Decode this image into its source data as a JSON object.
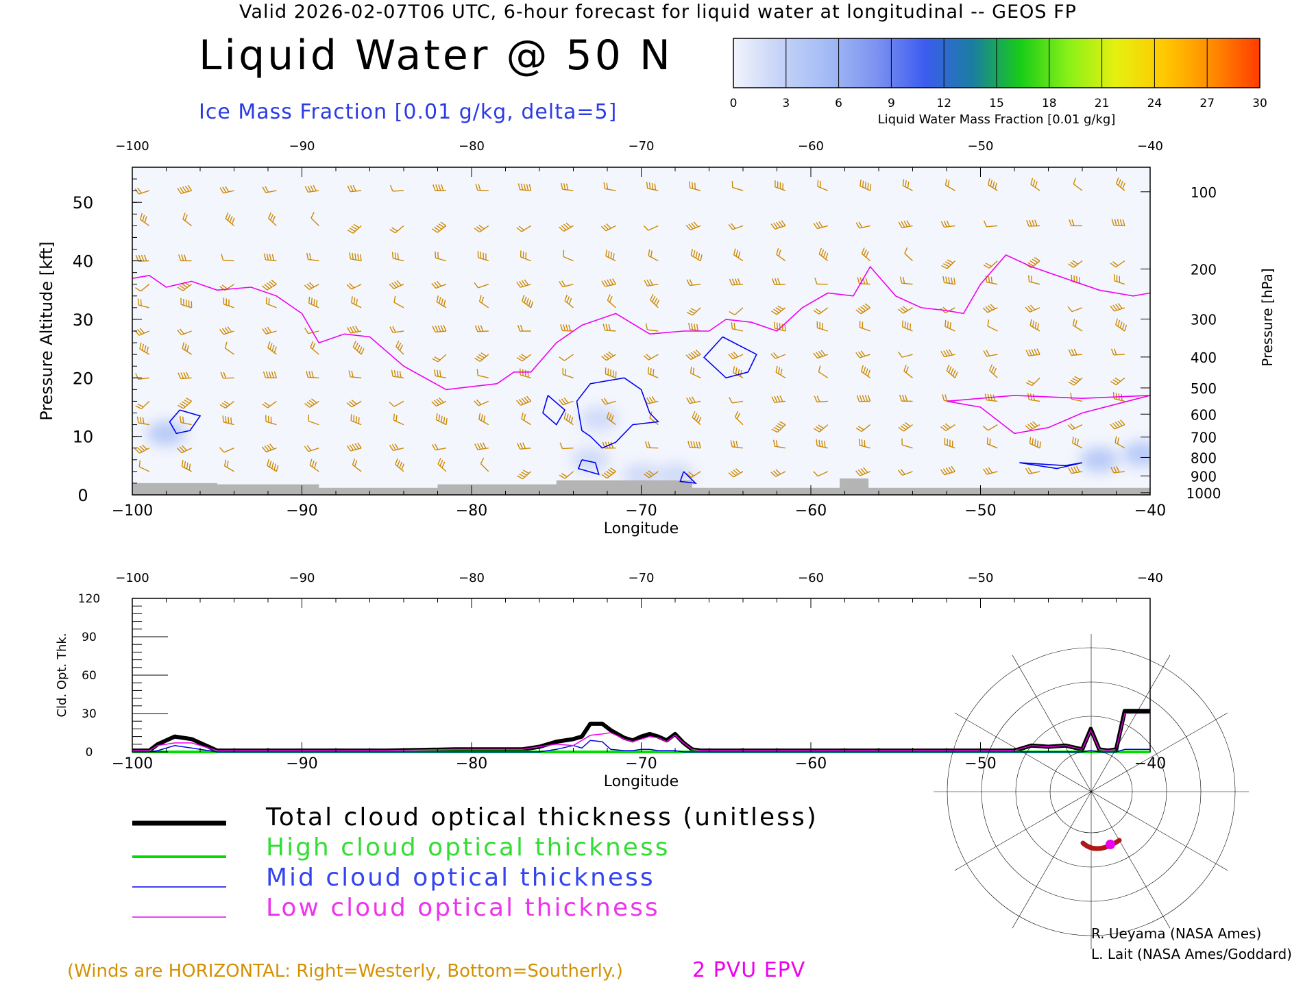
{
  "header": {
    "valid_line": "Valid 2026-02-07T06 UTC, 6-hour forecast for liquid water at longitudinal -- GEOS FP",
    "title": "Liquid Water @ 50 N",
    "subtitle": "Ice Mass Fraction [0.01 g/kg, delta=5]"
  },
  "colorbar": {
    "label": "Liquid Water Mass Fraction [0.01 g/kg]",
    "ticks": [
      "0",
      "3",
      "6",
      "9",
      "12",
      "15",
      "18",
      "21",
      "24",
      "27",
      "30"
    ],
    "colors": [
      "#f2f4fc",
      "#c4d2f7",
      "#a2baf5",
      "#7b92f0",
      "#3c5cf0",
      "#1a7ea0",
      "#18cc18",
      "#88f018",
      "#e6f010",
      "#ffc800",
      "#ff8c00",
      "#ff3c00"
    ]
  },
  "legend": {
    "total": "Total cloud optical thickness (unitless)",
    "high": "High cloud optical thickness",
    "mid": "Mid cloud optical thickness",
    "low": "Low cloud optical thickness",
    "colors": {
      "total": "#000000",
      "high": "#00dd00",
      "mid": "#0000ee",
      "low": "#ee00ee"
    }
  },
  "notes": {
    "winds": "(Winds are HORIZONTAL: Right=Westerly, Bottom=Southerly.)",
    "pvu": "2 PVU EPV"
  },
  "credits": {
    "line1": "R. Ueyama (NASA Ames)",
    "line2": "L. Lait (NASA Ames/Goddard)"
  },
  "chart_data": [
    {
      "type": "heatmap",
      "title": "Liquid Water @ 50 N",
      "xlabel": "Longitude",
      "ylabel": "Pressure Altitude [kft]",
      "ylabel_right": "Pressure [hPa]",
      "xlim": [
        -100,
        -40
      ],
      "ylim": [
        0,
        56
      ],
      "x_ticks": [
        "−100",
        "−90",
        "−80",
        "−70",
        "−60",
        "−50",
        "−40"
      ],
      "x_tick_values": [
        -100,
        -90,
        -80,
        -70,
        -60,
        -50,
        -40
      ],
      "y_ticks": [
        "0",
        "10",
        "20",
        "30",
        "40",
        "50"
      ],
      "y_tick_values": [
        0,
        10,
        20,
        30,
        40,
        50
      ],
      "pressure_ticks": [
        "100",
        "200",
        "300",
        "400",
        "500",
        "600",
        "700",
        "800",
        "900",
        "1000"
      ],
      "pressure_levels_hPa": [
        100,
        200,
        300,
        400,
        500,
        600,
        700,
        800,
        900,
        1000
      ],
      "wind_barb_color": "#cc8800",
      "ice_contour_color": "#0000ee",
      "terrain_color": "#b4b4b4",
      "liquid_water_patches": [
        {
          "lon": -98,
          "kft": 10.5,
          "value": 8
        },
        {
          "lon": -72.5,
          "kft": 13,
          "value": 3
        },
        {
          "lon": -73,
          "kft": 6,
          "value": 3
        },
        {
          "lon": -70,
          "kft": 3.3,
          "value": 4
        },
        {
          "lon": -68,
          "kft": 3.3,
          "value": 3
        },
        {
          "lon": -40.5,
          "kft": 7,
          "value": 8
        },
        {
          "lon": -43,
          "kft": 6,
          "value": 6
        }
      ],
      "tropopause_2pvu": [
        {
          "lon": -100,
          "kft": 37
        },
        {
          "lon": -99,
          "kft": 37.5
        },
        {
          "lon": -98,
          "kft": 35.5
        },
        {
          "lon": -96.5,
          "kft": 36.5
        },
        {
          "lon": -95,
          "kft": 35
        },
        {
          "lon": -93,
          "kft": 35.5
        },
        {
          "lon": -91.5,
          "kft": 34
        },
        {
          "lon": -90,
          "kft": 31
        },
        {
          "lon": -89,
          "kft": 26
        },
        {
          "lon": -87.5,
          "kft": 27.5
        },
        {
          "lon": -86,
          "kft": 27
        },
        {
          "lon": -84,
          "kft": 22
        },
        {
          "lon": -81.5,
          "kft": 18
        },
        {
          "lon": -80,
          "kft": 18.5
        },
        {
          "lon": -78.5,
          "kft": 19
        },
        {
          "lon": -77.5,
          "kft": 21
        },
        {
          "lon": -76.5,
          "kft": 21
        },
        {
          "lon": -75,
          "kft": 26
        },
        {
          "lon": -73.5,
          "kft": 29
        },
        {
          "lon": -71.5,
          "kft": 31
        },
        {
          "lon": -69.5,
          "kft": 27.5
        },
        {
          "lon": -67.5,
          "kft": 28
        },
        {
          "lon": -66,
          "kft": 28
        },
        {
          "lon": -65,
          "kft": 30
        },
        {
          "lon": -63.5,
          "kft": 29.5
        },
        {
          "lon": -62,
          "kft": 28
        },
        {
          "lon": -60.5,
          "kft": 32
        },
        {
          "lon": -59,
          "kft": 34.5
        },
        {
          "lon": -57.5,
          "kft": 34
        },
        {
          "lon": -56.5,
          "kft": 39
        },
        {
          "lon": -55,
          "kft": 34
        },
        {
          "lon": -53.5,
          "kft": 32
        },
        {
          "lon": -52,
          "kft": 31.5
        },
        {
          "lon": -51,
          "kft": 31
        },
        {
          "lon": -50,
          "kft": 36
        },
        {
          "lon": -48.5,
          "kft": 41
        },
        {
          "lon": -47,
          "kft": 39
        },
        {
          "lon": -45,
          "kft": 37
        },
        {
          "lon": -43,
          "kft": 35
        },
        {
          "lon": -41,
          "kft": 34
        },
        {
          "lon": -40,
          "kft": 34.5
        }
      ],
      "tropopause_low_branch": [
        {
          "lon": -52,
          "kft": 16
        },
        {
          "lon": -50,
          "kft": 15
        },
        {
          "lon": -48,
          "kft": 10.5
        },
        {
          "lon": -46,
          "kft": 11.5
        },
        {
          "lon": -44,
          "kft": 14
        },
        {
          "lon": -42,
          "kft": 15.5
        },
        {
          "lon": -40,
          "kft": 17
        }
      ],
      "tropopause_low_upper": [
        {
          "lon": -52,
          "kft": 16
        },
        {
          "lon": -48,
          "kft": 17
        },
        {
          "lon": -44,
          "kft": 16.5
        },
        {
          "lon": -40,
          "kft": 17
        }
      ],
      "ice_contours": [
        [
          {
            "lon": -97.2,
            "kft": 14.5
          },
          {
            "lon": -96,
            "kft": 13.5
          },
          {
            "lon": -96.6,
            "kft": 11
          },
          {
            "lon": -97.4,
            "kft": 10.5
          },
          {
            "lon": -97.8,
            "kft": 12.5
          },
          {
            "lon": -97.2,
            "kft": 14.5
          }
        ],
        [
          {
            "lon": -71,
            "kft": 20
          },
          {
            "lon": -70,
            "kft": 18
          },
          {
            "lon": -69.5,
            "kft": 14
          },
          {
            "lon": -69,
            "kft": 12.5
          },
          {
            "lon": -70.5,
            "kft": 12
          },
          {
            "lon": -71.5,
            "kft": 9
          },
          {
            "lon": -72.3,
            "kft": 8
          },
          {
            "lon": -73,
            "kft": 10
          },
          {
            "lon": -73.5,
            "kft": 11
          },
          {
            "lon": -73.8,
            "kft": 16
          },
          {
            "lon": -73,
            "kft": 19
          },
          {
            "lon": -71,
            "kft": 20
          }
        ],
        [
          {
            "lon": -75.5,
            "kft": 17
          },
          {
            "lon": -74.5,
            "kft": 14.5
          },
          {
            "lon": -75,
            "kft": 12
          },
          {
            "lon": -75.8,
            "kft": 14
          },
          {
            "lon": -75.5,
            "kft": 17
          }
        ],
        [
          {
            "lon": -65.2,
            "kft": 27
          },
          {
            "lon": -63.2,
            "kft": 24
          },
          {
            "lon": -63.7,
            "kft": 21
          },
          {
            "lon": -65,
            "kft": 20
          },
          {
            "lon": -66.3,
            "kft": 23.5
          },
          {
            "lon": -65.2,
            "kft": 27
          }
        ],
        [
          {
            "lon": -73.5,
            "kft": 6
          },
          {
            "lon": -73.7,
            "kft": 4.5
          },
          {
            "lon": -72.5,
            "kft": 3.5
          },
          {
            "lon": -72.7,
            "kft": 5.5
          },
          {
            "lon": -73.5,
            "kft": 6
          }
        ],
        [
          {
            "lon": -67.5,
            "kft": 4
          },
          {
            "lon": -66.8,
            "kft": 2
          },
          {
            "lon": -67.7,
            "kft": 2.3
          },
          {
            "lon": -67.5,
            "kft": 4
          }
        ],
        [
          {
            "lon": -47.7,
            "kft": 5.5
          },
          {
            "lon": -45,
            "kft": 5
          },
          {
            "lon": -44,
            "kft": 5.5
          },
          {
            "lon": -45.5,
            "kft": 4.5
          },
          {
            "lon": -47.7,
            "kft": 5.5
          }
        ]
      ],
      "terrain": [
        {
          "lon": -100,
          "kft": 2
        },
        {
          "lon": -95,
          "kft": 2
        },
        {
          "lon": -95,
          "kft": 1.8
        },
        {
          "lon": -89,
          "kft": 1.8
        },
        {
          "lon": -89,
          "kft": 1.2
        },
        {
          "lon": -82,
          "kft": 1.2
        },
        {
          "lon": -82,
          "kft": 1.8
        },
        {
          "lon": -75,
          "kft": 1.8
        },
        {
          "lon": -75,
          "kft": 2.5
        },
        {
          "lon": -67,
          "kft": 2.5
        },
        {
          "lon": -67,
          "kft": 1.2
        },
        {
          "lon": -58.3,
          "kft": 1.2
        },
        {
          "lon": -58.3,
          "kft": 2.8
        },
        {
          "lon": -56.6,
          "kft": 2.8
        },
        {
          "lon": -56.6,
          "kft": 1.2
        },
        {
          "lon": -40,
          "kft": 1.2
        }
      ]
    },
    {
      "type": "line",
      "xlabel": "Longitude",
      "ylabel": "Cld. Opt. Thk.",
      "xlim": [
        -100,
        -40
      ],
      "ylim": [
        0,
        120
      ],
      "x_ticks": [
        "−100",
        "−90",
        "−80",
        "−70",
        "−60",
        "−50",
        "−40"
      ],
      "x_tick_values": [
        -100,
        -90,
        -80,
        -70,
        -60,
        -50,
        -40
      ],
      "y_ticks": [
        "0",
        "30",
        "60",
        "90",
        "120"
      ],
      "y_tick_values": [
        0,
        30,
        60,
        90,
        120
      ],
      "x": [
        -100,
        -99,
        -98.5,
        -97.5,
        -96.5,
        -95.5,
        -95,
        -90,
        -85,
        -81,
        -79,
        -77,
        -76,
        -75,
        -74,
        -73.5,
        -73,
        -72.3,
        -71.8,
        -71,
        -70.5,
        -70,
        -69.5,
        -69,
        -68.5,
        -68,
        -67.5,
        -67,
        -66.5,
        -66,
        -63,
        -60,
        -55,
        -50,
        -48,
        -47,
        -46,
        -45,
        -44,
        -43.5,
        -43,
        -42.5,
        -42,
        -41.5,
        -41,
        -40.5,
        -40
      ],
      "series": [
        {
          "name": "Total cloud optical thickness (unitless)",
          "values": [
            1,
            1,
            6,
            12,
            10,
            4,
            1,
            1,
            1,
            2,
            2,
            2,
            4,
            8,
            10,
            12,
            22,
            22,
            17,
            11,
            9,
            12,
            14,
            12,
            9,
            14,
            7,
            2,
            1,
            1,
            1,
            1,
            1,
            1,
            1,
            5,
            4,
            5,
            2,
            18,
            2,
            1,
            2,
            32,
            32,
            32,
            32
          ]
        },
        {
          "name": "High cloud optical thickness",
          "values": [
            0,
            0,
            0,
            0,
            0,
            0,
            0,
            0,
            0,
            0,
            0,
            0,
            0,
            0,
            0,
            0,
            0,
            0,
            0,
            0,
            0,
            0,
            0,
            0,
            0,
            0,
            0,
            0,
            0,
            0,
            0,
            0,
            0,
            0,
            0,
            0,
            0,
            0,
            0,
            0,
            0,
            0,
            0,
            0,
            0,
            0,
            0
          ]
        },
        {
          "name": "Mid cloud optical thickness",
          "values": [
            0,
            0,
            1,
            5,
            3,
            1,
            0,
            0,
            0,
            0,
            0,
            0,
            0,
            2,
            5,
            3,
            9,
            8,
            2,
            1,
            1,
            2,
            2,
            1,
            1,
            1,
            0,
            0,
            0,
            0,
            0,
            0,
            0,
            0,
            0,
            0,
            0,
            0,
            0,
            1,
            0,
            0,
            0,
            2,
            2,
            2,
            2
          ]
        },
        {
          "name": "Low cloud optical thickness",
          "values": [
            1,
            1,
            5,
            7,
            7,
            3,
            1,
            1,
            1,
            2,
            2,
            2,
            4,
            6,
            5,
            9,
            13,
            14,
            15,
            10,
            8,
            10,
            12,
            11,
            8,
            13,
            7,
            2,
            1,
            1,
            1,
            1,
            1,
            1,
            1,
            5,
            4,
            5,
            2,
            17,
            2,
            1,
            2,
            30,
            30,
            30,
            30
          ]
        }
      ]
    }
  ]
}
